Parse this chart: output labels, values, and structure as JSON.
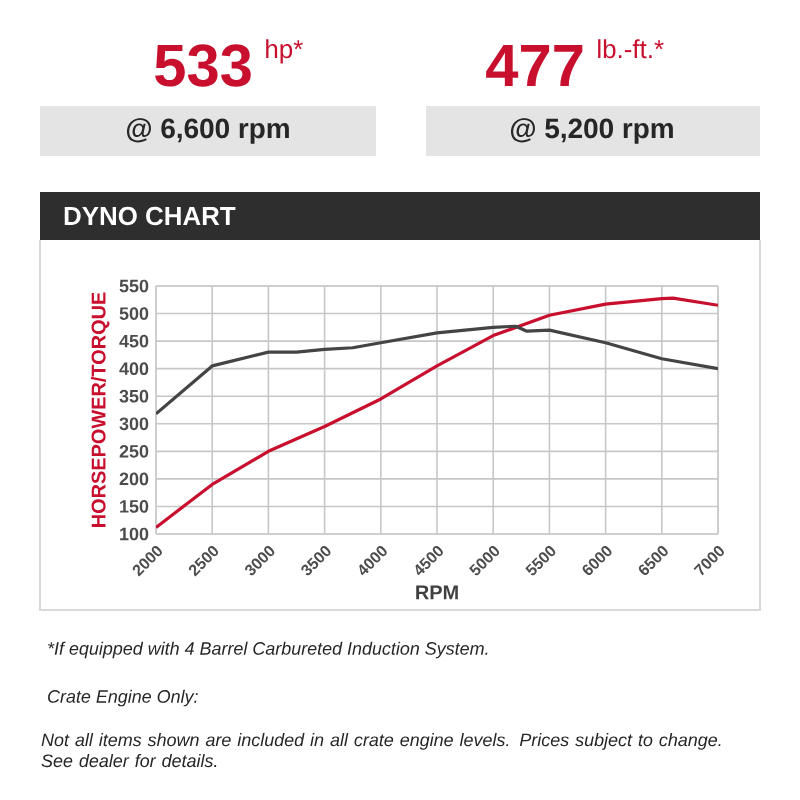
{
  "chart_data": {
    "type": "line",
    "title": "DYNO CHART",
    "xlabel": "RPM",
    "ylabel": "HORSEPOWER/TORQUE",
    "xlim": [
      2000,
      7000
    ],
    "ylim": [
      100,
      550
    ],
    "xticks": [
      2000,
      2500,
      3000,
      3500,
      4000,
      4500,
      5000,
      5500,
      6000,
      6500,
      7000
    ],
    "yticks": [
      100,
      150,
      200,
      250,
      300,
      350,
      400,
      450,
      500,
      550
    ],
    "grid": true,
    "marker": "none",
    "line_style": "solid",
    "series": [
      {
        "color": "#c8102e",
        "x": [
          2000,
          2500,
          3000,
          3500,
          4000,
          4500,
          5000,
          5500,
          6000,
          6500,
          6600,
          7000
        ],
        "values": [
          112,
          190,
          250,
          295,
          345,
          405,
          460,
          497,
          517,
          527,
          528,
          515
        ]
      },
      {
        "color": "#444444",
        "x": [
          2000,
          2500,
          3000,
          3250,
          3500,
          3750,
          4000,
          4500,
          5000,
          5200,
          5300,
          5500,
          6000,
          6500,
          7000
        ],
        "values": [
          318,
          405,
          430,
          430,
          435,
          438,
          447,
          465,
          475,
          477,
          468,
          470,
          447,
          418,
          400
        ]
      }
    ],
    "annotations": [
      "533",
      "hp*",
      "@ 6,600 rpm",
      "477",
      "lb.-ft.*",
      "@ 5,200 rpm",
      "*If equipped with 4 Barrel Carbureted Induction System.",
      "Crate Engine Only:",
      "Not all items shown are included in all crate engine levels. Prices subject to change. See dealer for details."
    ]
  }
}
